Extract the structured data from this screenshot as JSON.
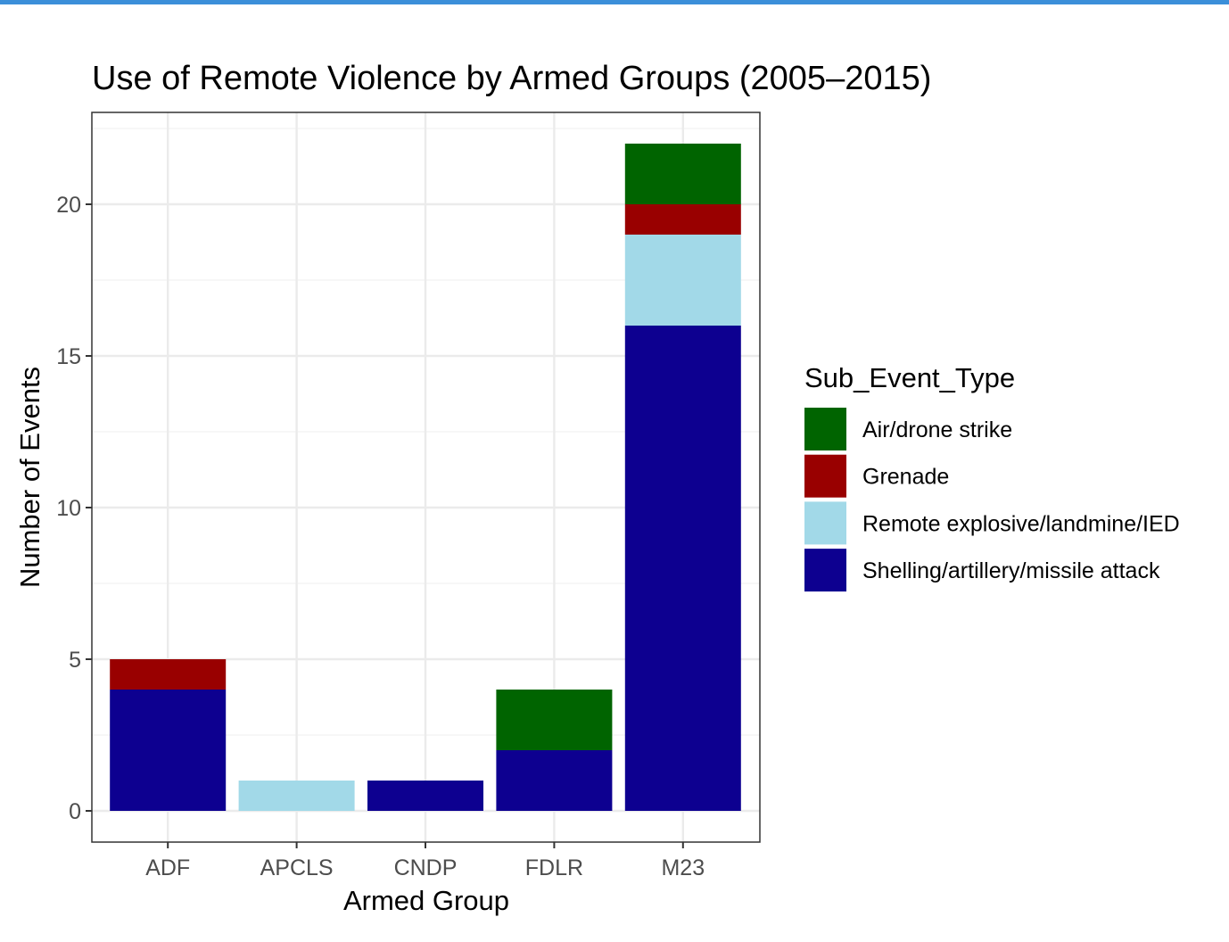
{
  "chart_data": {
    "type": "bar",
    "stacked": true,
    "title": "Use of Remote Violence by Armed Groups (2005–2015)",
    "xlabel": "Armed Group",
    "ylabel": "Number of Events",
    "categories": [
      "ADF",
      "APCLS",
      "CNDP",
      "FDLR",
      "M23"
    ],
    "ylim": [
      0,
      23
    ],
    "yticks": [
      0,
      5,
      10,
      15,
      20
    ],
    "grid": true,
    "legend": {
      "title": "Sub_Event_Type",
      "placement": "right"
    },
    "series": [
      {
        "name": "Shelling/artillery/missile attack",
        "color": "#0d0090",
        "values": [
          4,
          0,
          1,
          2,
          16
        ]
      },
      {
        "name": "Remote explosive/landmine/IED",
        "color": "#a2d9e8",
        "values": [
          0,
          1,
          0,
          0,
          3
        ]
      },
      {
        "name": "Grenade",
        "color": "#990000",
        "values": [
          1,
          0,
          0,
          0,
          1
        ]
      },
      {
        "name": "Air/drone strike",
        "color": "#006400",
        "values": [
          0,
          0,
          0,
          2,
          2
        ]
      }
    ],
    "legend_order": [
      "Air/drone strike",
      "Grenade",
      "Remote explosive/landmine/IED",
      "Shelling/artillery/missile attack"
    ]
  }
}
